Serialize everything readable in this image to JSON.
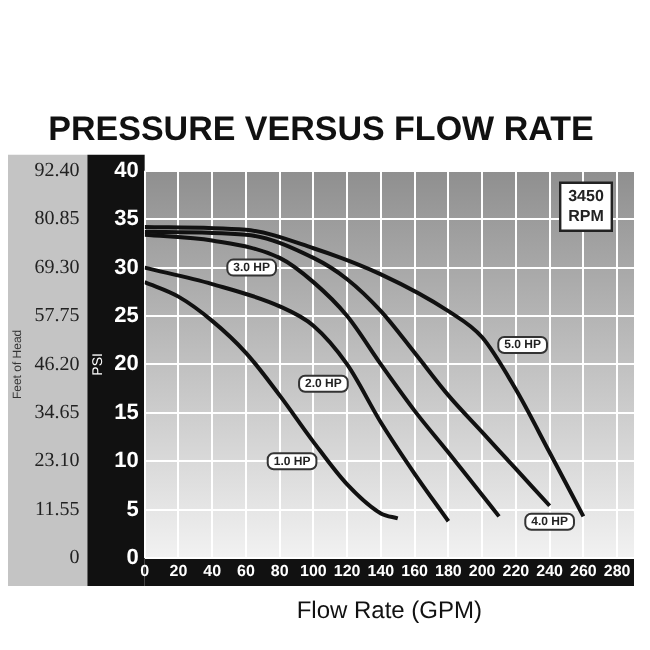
{
  "chart_data": {
    "type": "line",
    "title": "PRESSURE VERSUS FLOW RATE",
    "xlabel": "Flow Rate (GPM)",
    "ylabel": "PSI",
    "y2label": "Feet of Head",
    "xlim": [
      0,
      290
    ],
    "xticks": [
      0,
      20,
      40,
      60,
      80,
      100,
      120,
      140,
      160,
      180,
      200,
      220,
      240,
      260,
      280
    ],
    "ylim": [
      0,
      40
    ],
    "yticks": [
      0,
      5,
      10,
      15,
      20,
      25,
      30,
      35,
      40
    ],
    "y2lim": [
      0,
      92.4
    ],
    "y2ticks": [
      0,
      11.55,
      {
        "value": 23.1,
        "label": "23.10"
      },
      34.65,
      {
        "value": 46.2,
        "label": "46.20"
      },
      57.75,
      {
        "value": 69.3,
        "label": "69.30"
      },
      80.85,
      {
        "value": 92.4,
        "label": "92.40"
      }
    ],
    "grid": true,
    "legend": false,
    "marker": "none",
    "line_style": "solid",
    "annotations": [
      "3450 RPM"
    ],
    "series": [
      {
        "name": "1.0 HP",
        "color": "#111111",
        "x": [
          0,
          20,
          40,
          60,
          80,
          100,
          120,
          140,
          150
        ],
        "values": [
          28.5,
          27,
          24.5,
          21.2,
          16.8,
          12,
          7.6,
          4.6,
          4.1
        ]
      },
      {
        "name": "2.0 HP",
        "color": "#111111",
        "x": [
          0,
          40,
          80,
          100,
          120,
          140,
          160,
          180
        ],
        "values": [
          30,
          28.3,
          26,
          24,
          20,
          14,
          8.7,
          3.8
        ]
      },
      {
        "name": "3.0 HP",
        "color": "#111111",
        "x": [
          0,
          40,
          80,
          100,
          120,
          140,
          160,
          180,
          200,
          210
        ],
        "values": [
          33.4,
          32.8,
          31,
          28.5,
          25,
          20,
          15.2,
          10.9,
          6.5,
          4.3
        ]
      },
      {
        "name": "4.0 HP",
        "color": "#111111",
        "x": [
          0,
          60,
          100,
          120,
          140,
          160,
          180,
          200,
          220,
          240
        ],
        "values": [
          33.7,
          33.4,
          31,
          28.8,
          25.5,
          21.2,
          16.8,
          13,
          9.2,
          5.4
        ]
      },
      {
        "name": "5.0 HP",
        "color": "#111111",
        "x": [
          0,
          60,
          100,
          140,
          180,
          200,
          220,
          240,
          260
        ],
        "values": [
          34.2,
          33.9,
          32,
          29.3,
          25.5,
          22.8,
          17.4,
          10.9,
          4.3
        ]
      }
    ]
  }
}
